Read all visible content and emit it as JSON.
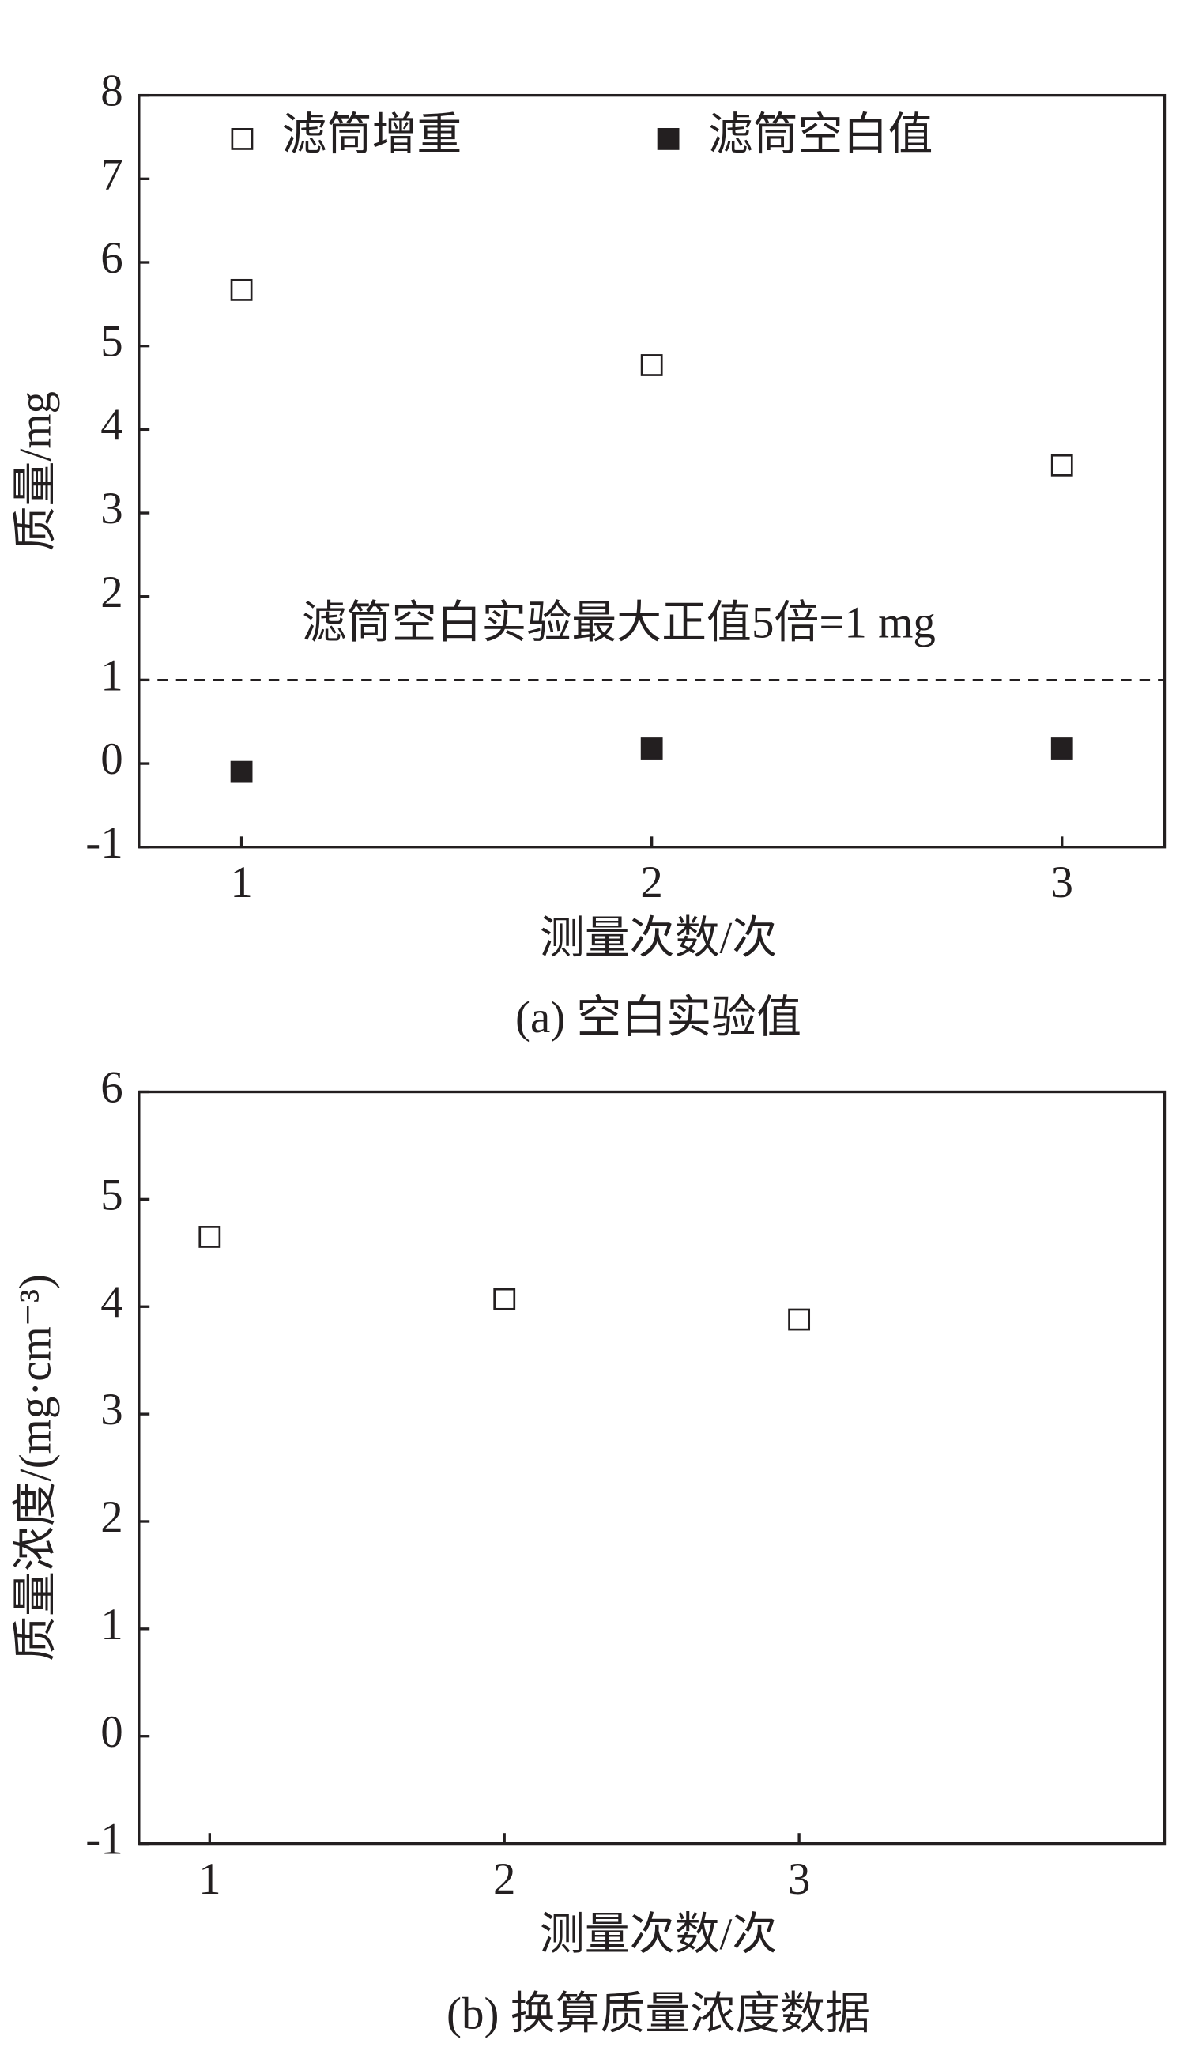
{
  "chart_data": [
    {
      "type": "scatter",
      "x": [
        1,
        2,
        3
      ],
      "series": [
        {
          "name": "滤筒增重",
          "color": "#231f20",
          "marker": "open-square",
          "values": [
            5.67,
            4.77,
            3.57
          ]
        },
        {
          "name": "滤筒空白值",
          "color": "#231f20",
          "marker": "filled-square",
          "values": [
            -0.1,
            0.18,
            0.18
          ]
        }
      ],
      "xlim": [
        0.75,
        3.25
      ],
      "xticks": [
        1,
        2,
        3
      ],
      "ylim": [
        -1,
        8
      ],
      "yticks": [
        -1,
        0,
        1,
        2,
        3,
        4,
        5,
        6,
        7,
        8
      ],
      "xlabel": "测量次数/次",
      "ylabel": "质量/mg",
      "reference_line": {
        "value": 1,
        "label": "滤筒空白实验最大正值5倍=1 mg"
      },
      "legend": "top",
      "grid": false,
      "caption": "(a) 空白实验值"
    },
    {
      "type": "scatter",
      "x": [
        1,
        2,
        3
      ],
      "series": [
        {
          "color": "#231f20",
          "marker": "open-square",
          "values": [
            4.65,
            4.07,
            3.88
          ]
        }
      ],
      "xlim": [
        0.76,
        4.24
      ],
      "xticks": [
        1,
        2,
        3
      ],
      "ylim": [
        -1,
        6
      ],
      "yticks": [
        -1,
        0,
        1,
        2,
        3,
        4,
        5,
        6
      ],
      "xlabel": "测量次数/次",
      "ylabel": "质量浓度/(mg·cm⁻³)",
      "grid": false,
      "caption": "(b) 换算质量浓度数据"
    }
  ]
}
